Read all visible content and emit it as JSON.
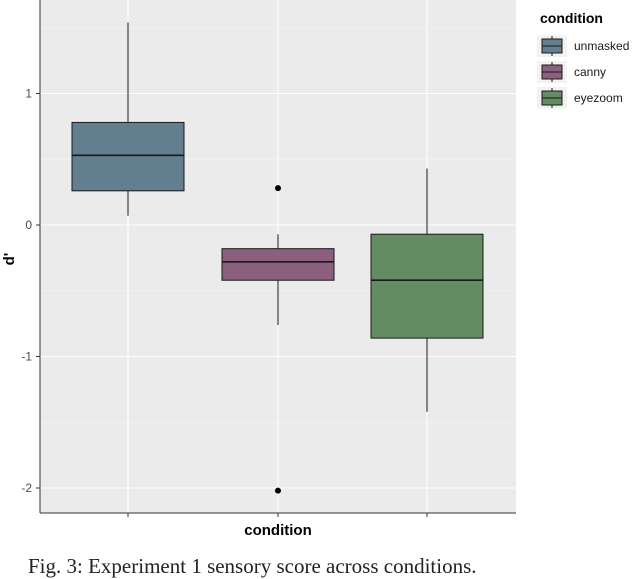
{
  "chart_data": {
    "type": "boxplot",
    "title": "",
    "xlabel": "condition",
    "ylabel": "d'",
    "ylim": [
      -2.2,
      1.7
    ],
    "yticks": [
      1,
      0,
      -1,
      -2
    ],
    "ytick_labels": [
      "1",
      "0",
      "-1",
      "-2"
    ],
    "grid": true,
    "legend": {
      "title": "condition",
      "placement": "right",
      "entries": [
        "unmasked",
        "canny",
        "eyezoom"
      ]
    },
    "series": [
      {
        "name": "unmasked",
        "color": "#637f8f",
        "whisker_low": 0.07,
        "q1": 0.26,
        "median": 0.53,
        "q3": 0.78,
        "whisker_high": 1.54,
        "outliers": []
      },
      {
        "name": "canny",
        "color": "#8b5f7e",
        "whisker_low": -0.76,
        "q1": -0.42,
        "median": -0.28,
        "q3": -0.18,
        "whisker_high": -0.07,
        "outliers": [
          0.28,
          -2.02
        ]
      },
      {
        "name": "eyezoom",
        "color": "#638c63",
        "whisker_low": -1.42,
        "q1": -0.86,
        "median": -0.42,
        "q3": -0.07,
        "whisker_high": 0.43,
        "outliers": []
      }
    ]
  },
  "caption": "Fig. 3: Experiment 1 sensory score across conditions."
}
